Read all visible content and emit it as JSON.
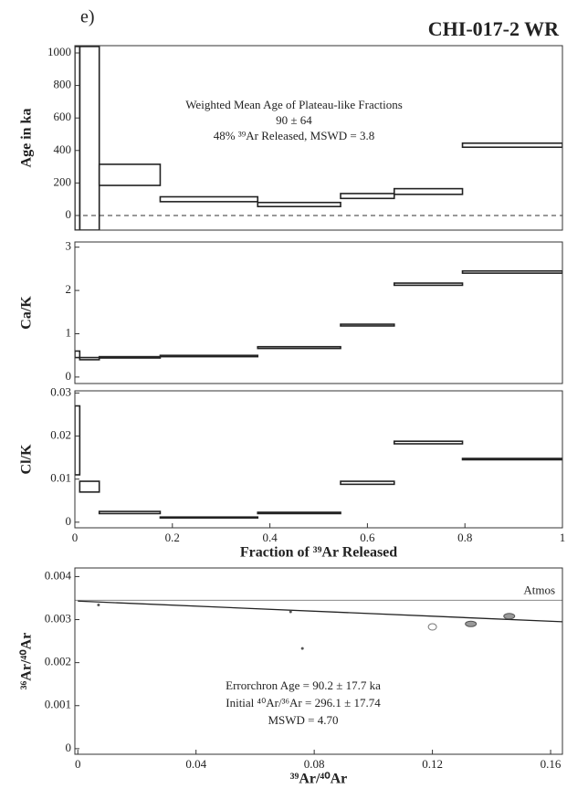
{
  "panel_label": "e)",
  "title": "CHI-017-2 WR",
  "chart_data": [
    {
      "type": "step_band",
      "ylabel": "Age in ka",
      "bins": [
        0,
        0.01,
        0.05,
        0.175,
        0.375,
        0.545,
        0.655,
        0.795,
        1
      ],
      "lower": [
        -90,
        -90,
        185,
        85,
        55,
        105,
        130,
        420
      ],
      "upper": [
        1040,
        1040,
        315,
        115,
        80,
        135,
        165,
        445
      ],
      "xlim": [
        0,
        1
      ],
      "ylim": [
        -90,
        1045
      ],
      "yticks": [
        0,
        200,
        400,
        600,
        800,
        1000
      ],
      "reference_line": {
        "value": 0,
        "style": "dashed"
      },
      "annotations": [
        "Weighted Mean Age of Plateau-like Fractions",
        "90 ± 64",
        "48% ³⁹Ar Released, MSWD = 3.8"
      ]
    },
    {
      "type": "step_band",
      "ylabel": "Ca/K",
      "bins": [
        0,
        0.01,
        0.05,
        0.175,
        0.375,
        0.545,
        0.655,
        0.795,
        1
      ],
      "lower": [
        0.45,
        0.4,
        0.44,
        0.47,
        0.66,
        1.18,
        2.12,
        2.4
      ],
      "upper": [
        0.6,
        0.45,
        0.47,
        0.5,
        0.7,
        1.22,
        2.17,
        2.45
      ],
      "xlim": [
        0,
        1
      ],
      "ylim": [
        -0.15,
        3.12
      ],
      "yticks": [
        0,
        1,
        2,
        3
      ]
    },
    {
      "type": "step_band",
      "ylabel": "Cl/K",
      "xlabel": "Fraction of ³⁹Ar Released",
      "bins": [
        0,
        0.01,
        0.05,
        0.175,
        0.375,
        0.545,
        0.655,
        0.795,
        1
      ],
      "lower": [
        0.011,
        0.007,
        0.002,
        0.001,
        0.002,
        0.0088,
        0.0182,
        0.0145
      ],
      "upper": [
        0.027,
        0.0095,
        0.0025,
        0.0012,
        0.0023,
        0.0095,
        0.0188,
        0.0148
      ],
      "xlim": [
        0,
        1
      ],
      "ylim": [
        -0.0013,
        0.0305
      ],
      "xticks": [
        0,
        0.2,
        0.4,
        0.6,
        0.8,
        1
      ],
      "yticks": [
        0,
        0.01,
        0.02,
        0.03
      ]
    },
    {
      "type": "scatter",
      "ylabel": "³⁶Ar/⁴⁰Ar",
      "xlabel": "³⁹Ar/⁴⁰Ar",
      "x": [
        0.007,
        0.072,
        0.076,
        0.12,
        0.133,
        0.146
      ],
      "values": [
        0.00334,
        0.00318,
        0.00233,
        0.00283,
        0.0029,
        0.00308
      ],
      "markers": [
        "dot",
        "dot",
        "dot",
        "open",
        "filled",
        "filled"
      ],
      "fit": {
        "x": [
          0,
          0.164
        ],
        "y": [
          0.00343,
          0.00295
        ]
      },
      "reference_line": {
        "value": 0.00345,
        "label": "Atmos",
        "style": "solid"
      },
      "xlim": [
        -0.001,
        0.164
      ],
      "ylim": [
        -0.00013,
        0.0042
      ],
      "xticks": [
        0,
        0.04,
        0.08,
        0.12,
        0.16
      ],
      "yticks": [
        0,
        0.001,
        0.002,
        0.003,
        0.004
      ],
      "annotations": [
        "Errorchron Age = 90.2 ± 17.7 ka",
        "Initial ⁴⁰Ar/³⁶Ar = 296.1 ± 17.74",
        "MSWD = 4.70"
      ]
    }
  ]
}
